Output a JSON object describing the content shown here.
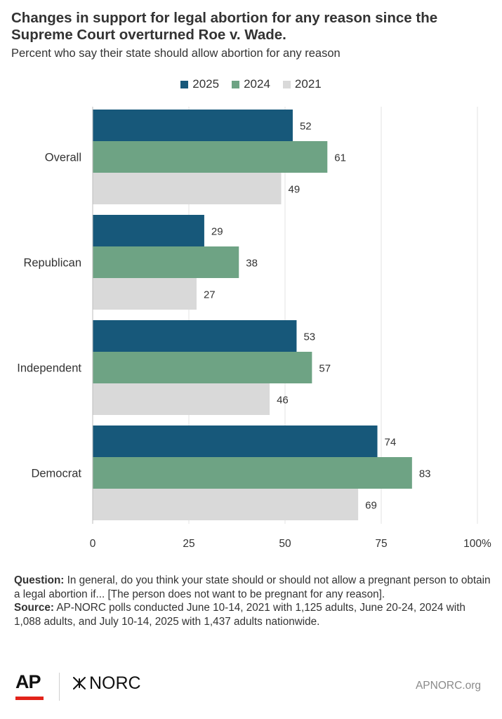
{
  "header": {
    "title": "Changes in support for legal abortion for any reason since the Supreme Court overturned Roe v. Wade.",
    "subtitle": "Percent who say their state should allow abortion for any reason"
  },
  "chart_data": {
    "type": "bar",
    "orientation": "horizontal",
    "categories": [
      "Overall",
      "Republican",
      "Independent",
      "Democrat"
    ],
    "series": [
      {
        "name": "2025",
        "color": "#17587a",
        "values": [
          52,
          29,
          53,
          74
        ]
      },
      {
        "name": "2024",
        "color": "#6ea384",
        "values": [
          61,
          38,
          57,
          83
        ]
      },
      {
        "name": "2021",
        "color": "#d9d9d9",
        "values": [
          49,
          27,
          46,
          69
        ]
      }
    ],
    "xlim": [
      0,
      100
    ],
    "xticks": [
      0,
      25,
      50,
      75,
      100
    ],
    "xtick_labels": [
      "0",
      "25",
      "50",
      "75",
      "100%"
    ],
    "grid": true,
    "legend_position": "top-center",
    "data_labels": true
  },
  "notes": {
    "question_label": "Question:",
    "question_text": " In general, do you think your state should or should not allow a pregnant person to obtain a legal abortion if... [The person does not want to be pregnant for any reason].",
    "source_label": "Source:",
    "source_text": " AP-NORC polls conducted June 10-14, 2021 with 1,125 adults, June 20-24, 2024 with 1,088 adults, and July 10-14, 2025 with 1,437 adults nationwide."
  },
  "footer": {
    "ap_logo": "AP",
    "norc_logo": "NORC",
    "website": "APNORC.org"
  },
  "icons": {
    "norc_mark": "asterisk-cross-icon"
  }
}
